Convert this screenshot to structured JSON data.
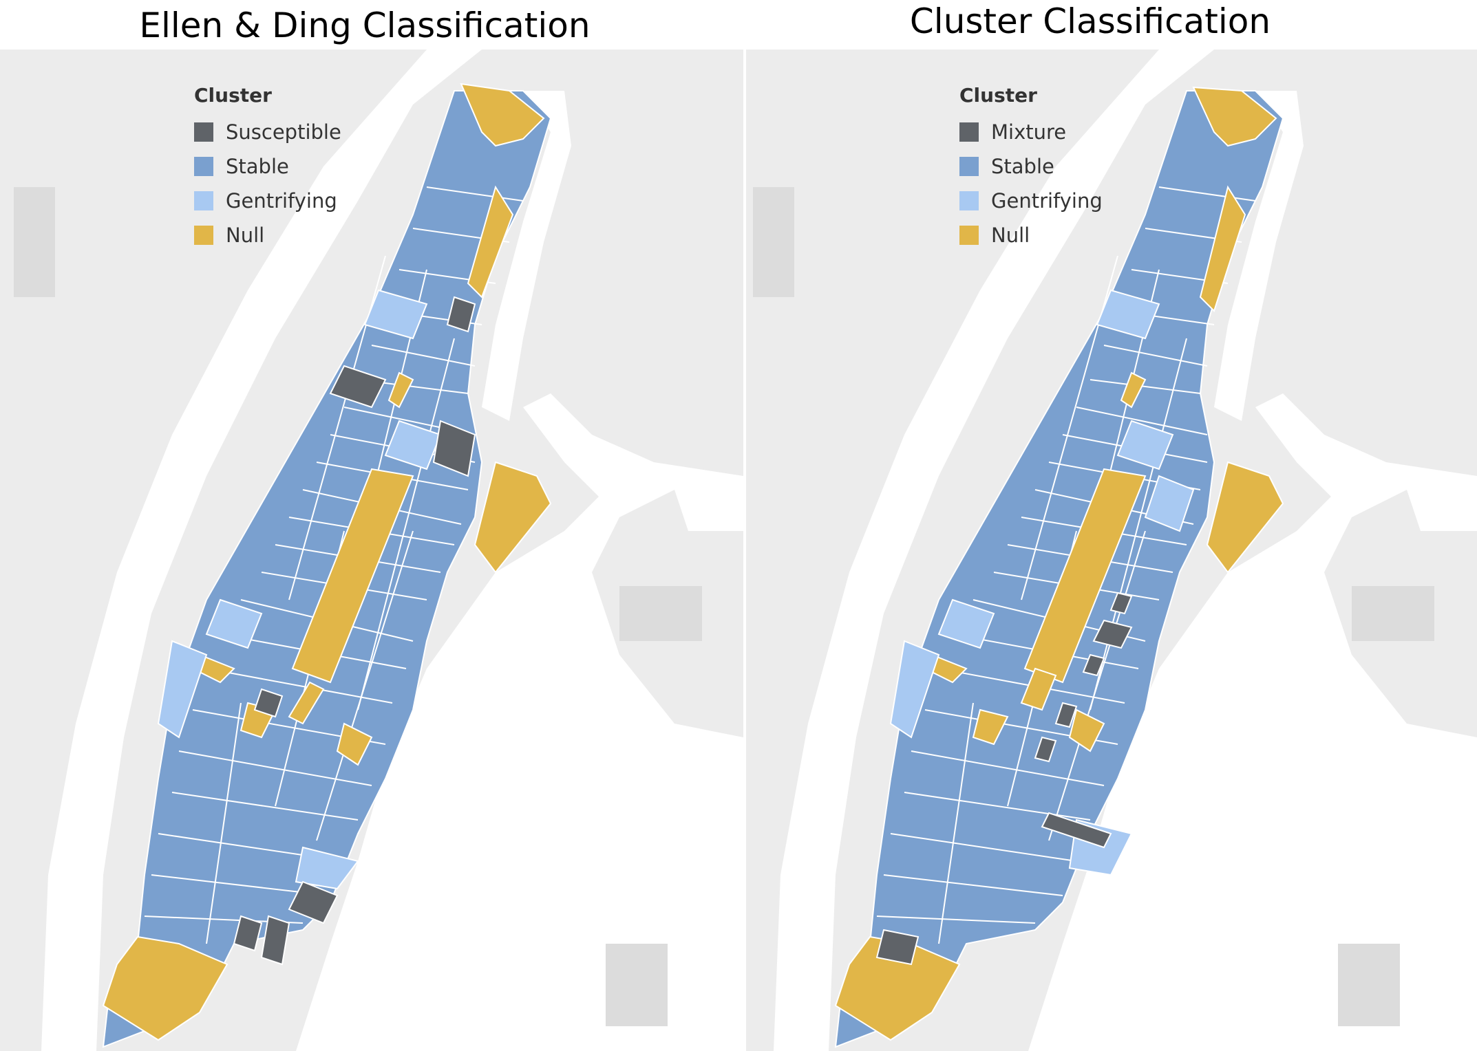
{
  "colors": {
    "susceptible": "#5f6368",
    "mixture": "#5f6368",
    "stable": "#7aa0cf",
    "gentrifying": "#a8c9f2",
    "null": "#e1b648",
    "land": "#ececec",
    "water": "#ffffff",
    "land_dark": "#dcdcdc"
  },
  "maps": [
    {
      "title": "Ellen & Ding Classification",
      "legend": {
        "title": "Cluster",
        "items": [
          {
            "label": "Susceptible",
            "color": "#5f6368"
          },
          {
            "label": "Stable",
            "color": "#7aa0cf"
          },
          {
            "label": "Gentrifying",
            "color": "#a8c9f2"
          },
          {
            "label": "Null",
            "color": "#e1b648"
          }
        ]
      }
    },
    {
      "title": "Cluster Classification",
      "legend": {
        "title": "Cluster",
        "items": [
          {
            "label": "Mixture",
            "color": "#5f6368"
          },
          {
            "label": "Stable",
            "color": "#7aa0cf"
          },
          {
            "label": "Gentrifying",
            "color": "#a8c9f2"
          },
          {
            "label": "Null",
            "color": "#e1b648"
          }
        ]
      }
    }
  ]
}
